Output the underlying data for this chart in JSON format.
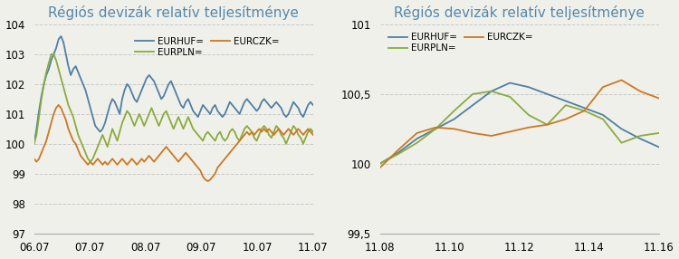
{
  "title": "Régiós devizák relatív teljesítménye",
  "colors": {
    "EURHUF": "#4f7fa3",
    "EURPLN": "#8aab3c",
    "EURCZK": "#cc7722"
  },
  "legend_labels": [
    "EURHUF=",
    "EURPLN=",
    "EURCZK="
  ],
  "chart1": {
    "xticks": [
      "06.07",
      "07.07",
      "08.07",
      "09.07",
      "10.07",
      "11.07"
    ],
    "ylim": [
      97,
      104
    ],
    "yticks": [
      97,
      98,
      99,
      100,
      101,
      102,
      103,
      104
    ],
    "EURHUF": [
      100.0,
      100.5,
      101.1,
      101.6,
      102.0,
      102.3,
      102.5,
      102.8,
      103.0,
      103.2,
      103.5,
      103.6,
      103.4,
      103.0,
      102.6,
      102.3,
      102.5,
      102.6,
      102.4,
      102.2,
      102.0,
      101.8,
      101.5,
      101.2,
      100.9,
      100.6,
      100.5,
      100.4,
      100.5,
      100.7,
      101.0,
      101.3,
      101.5,
      101.4,
      101.2,
      101.0,
      101.5,
      101.8,
      102.0,
      101.9,
      101.7,
      101.5,
      101.4,
      101.6,
      101.8,
      102.0,
      102.2,
      102.3,
      102.2,
      102.1,
      101.9,
      101.7,
      101.5,
      101.6,
      101.8,
      102.0,
      102.1,
      101.9,
      101.7,
      101.5,
      101.3,
      101.2,
      101.4,
      101.5,
      101.3,
      101.1,
      101.0,
      100.9,
      101.1,
      101.3,
      101.2,
      101.1,
      101.0,
      101.2,
      101.3,
      101.1,
      101.0,
      100.9,
      101.0,
      101.2,
      101.4,
      101.3,
      101.2,
      101.1,
      101.0,
      101.2,
      101.4,
      101.5,
      101.4,
      101.3,
      101.2,
      101.1,
      101.2,
      101.4,
      101.5,
      101.4,
      101.3,
      101.2,
      101.3,
      101.4,
      101.3,
      101.2,
      101.0,
      100.9,
      101.0,
      101.2,
      101.4,
      101.3,
      101.2,
      101.0,
      100.9,
      101.1,
      101.3,
      101.4,
      101.3
    ],
    "EURPLN": [
      100.0,
      100.3,
      100.9,
      101.5,
      102.0,
      102.4,
      102.7,
      103.0,
      103.0,
      102.8,
      102.5,
      102.2,
      101.9,
      101.6,
      101.3,
      101.1,
      100.9,
      100.6,
      100.3,
      100.1,
      99.9,
      99.7,
      99.5,
      99.4,
      99.5,
      99.7,
      99.9,
      100.1,
      100.3,
      100.1,
      99.9,
      100.2,
      100.5,
      100.3,
      100.1,
      100.4,
      100.7,
      100.9,
      101.1,
      101.0,
      100.8,
      100.6,
      100.8,
      101.0,
      100.8,
      100.6,
      100.8,
      101.0,
      101.2,
      101.0,
      100.8,
      100.6,
      100.8,
      101.0,
      101.1,
      100.9,
      100.7,
      100.5,
      100.7,
      100.9,
      100.7,
      100.5,
      100.7,
      100.9,
      100.7,
      100.5,
      100.4,
      100.3,
      100.2,
      100.1,
      100.3,
      100.4,
      100.3,
      100.2,
      100.1,
      100.3,
      100.4,
      100.2,
      100.1,
      100.2,
      100.4,
      100.5,
      100.4,
      100.2,
      100.1,
      100.3,
      100.5,
      100.6,
      100.5,
      100.4,
      100.2,
      100.1,
      100.3,
      100.5,
      100.6,
      100.5,
      100.3,
      100.2,
      100.4,
      100.6,
      100.5,
      100.3,
      100.2,
      100.0,
      100.2,
      100.4,
      100.6,
      100.5,
      100.3,
      100.2,
      100.0,
      100.2,
      100.4,
      100.5,
      100.4
    ],
    "EURCZK": [
      99.5,
      99.4,
      99.5,
      99.7,
      99.9,
      100.1,
      100.4,
      100.7,
      101.0,
      101.2,
      101.3,
      101.2,
      101.0,
      100.8,
      100.5,
      100.3,
      100.1,
      100.0,
      99.8,
      99.6,
      99.5,
      99.4,
      99.3,
      99.4,
      99.3,
      99.4,
      99.5,
      99.4,
      99.3,
      99.4,
      99.3,
      99.4,
      99.5,
      99.4,
      99.3,
      99.4,
      99.5,
      99.4,
      99.3,
      99.4,
      99.5,
      99.4,
      99.3,
      99.4,
      99.5,
      99.4,
      99.5,
      99.6,
      99.5,
      99.4,
      99.5,
      99.6,
      99.7,
      99.8,
      99.9,
      99.8,
      99.7,
      99.6,
      99.5,
      99.4,
      99.5,
      99.6,
      99.7,
      99.6,
      99.5,
      99.4,
      99.3,
      99.2,
      99.1,
      98.9,
      98.8,
      98.75,
      98.8,
      98.9,
      99.0,
      99.2,
      99.3,
      99.4,
      99.5,
      99.6,
      99.7,
      99.8,
      99.9,
      100.0,
      100.1,
      100.2,
      100.3,
      100.4,
      100.3,
      100.4,
      100.3,
      100.4,
      100.5,
      100.4,
      100.5,
      100.4,
      100.5,
      100.4,
      100.3,
      100.4,
      100.5,
      100.4,
      100.3,
      100.4,
      100.5,
      100.4,
      100.3,
      100.4,
      100.5,
      100.4,
      100.3,
      100.4,
      100.5,
      100.4,
      100.3
    ]
  },
  "chart2": {
    "xticks": [
      "11.08",
      "11.10",
      "11.12",
      "11.14",
      "11.16"
    ],
    "xlim_indices": [
      0,
      8
    ],
    "ylim": [
      99.5,
      101.0
    ],
    "yticks": [
      99.5,
      100.0,
      100.5,
      101.0
    ],
    "ytick_labels": [
      "99,5",
      "100",
      "100,5",
      "101"
    ],
    "EURHUF": [
      100.0,
      100.08,
      100.18,
      100.25,
      100.32,
      100.42,
      100.52,
      100.58,
      100.55,
      100.5,
      100.45,
      100.4,
      100.35,
      100.25,
      100.18,
      100.12
    ],
    "EURPLN": [
      100.0,
      100.07,
      100.15,
      100.25,
      100.38,
      100.5,
      100.52,
      100.48,
      100.35,
      100.28,
      100.42,
      100.38,
      100.32,
      100.15,
      100.2,
      100.22
    ],
    "EURCZK": [
      99.97,
      100.1,
      100.22,
      100.26,
      100.25,
      100.22,
      100.2,
      100.23,
      100.26,
      100.28,
      100.32,
      100.38,
      100.55,
      100.6,
      100.52,
      100.47
    ]
  },
  "background_color": "#f0f0eb",
  "grid_color": "#c8c8c8",
  "title_color": "#5588aa",
  "title_fontsize": 11,
  "tick_fontsize": 8.5,
  "line_width": 1.3
}
